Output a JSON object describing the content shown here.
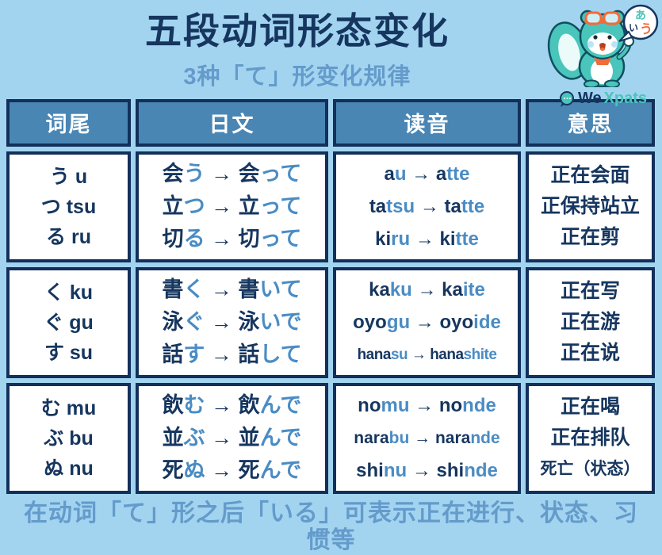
{
  "page": {
    "title": "五段动词形态变化",
    "subtitle": "3种「て」形变化规律",
    "footer": "在动词「て」形之后「いる」可表示正在进行、状态、习惯等"
  },
  "logo": {
    "bubble_chars": [
      "あ",
      "い",
      "う"
    ],
    "brand_we": "We",
    "brand_xpats": "Xpats"
  },
  "colors": {
    "bg": "#A2D4F0",
    "navy": "#16365F",
    "hl": "#4A8CC4",
    "muted": "#649BCB",
    "header-fill": "#4A86B4",
    "border": "#12305A",
    "teal": "#49C5BB",
    "teal-dark": "#0F4F5E",
    "orange": "#F26B3A"
  },
  "table": {
    "headers": [
      "词尾",
      "日文",
      "读音",
      "意思"
    ],
    "rows": [
      {
        "endings": [
          {
            "kana": "う",
            "romaji": "u"
          },
          {
            "kana": "つ",
            "romaji": "tsu"
          },
          {
            "kana": "る",
            "romaji": "ru"
          }
        ],
        "japanese": [
          {
            "from": {
              "stem": "会",
              "suffix": "う"
            },
            "to": {
              "stem": "会",
              "suffix": "って"
            }
          },
          {
            "from": {
              "stem": "立",
              "suffix": "つ"
            },
            "to": {
              "stem": "立",
              "suffix": "って"
            }
          },
          {
            "from": {
              "stem": "切",
              "suffix": "る"
            },
            "to": {
              "stem": "切",
              "suffix": "って"
            }
          }
        ],
        "readings": [
          {
            "from": {
              "stem": "a",
              "suffix": "u"
            },
            "to": {
              "stem": "a",
              "suffix": "tte"
            }
          },
          {
            "from": {
              "stem": "ta",
              "suffix": "tsu"
            },
            "to": {
              "stem": "ta",
              "suffix": "tte"
            }
          },
          {
            "from": {
              "stem": "ki",
              "suffix": "ru"
            },
            "to": {
              "stem": "ki",
              "suffix": "tte"
            }
          }
        ],
        "meanings": [
          "正在会面",
          "正保持站立",
          "正在剪"
        ]
      },
      {
        "endings": [
          {
            "kana": "く",
            "romaji": "ku"
          },
          {
            "kana": "ぐ",
            "romaji": "gu"
          },
          {
            "kana": "す",
            "romaji": "su"
          }
        ],
        "japanese": [
          {
            "from": {
              "stem": "書",
              "suffix": "く"
            },
            "to": {
              "stem": "書",
              "suffix": "いて"
            }
          },
          {
            "from": {
              "stem": "泳",
              "suffix": "ぐ"
            },
            "to": {
              "stem": "泳",
              "suffix": "いで"
            }
          },
          {
            "from": {
              "stem": "話",
              "suffix": "す"
            },
            "to": {
              "stem": "話",
              "suffix": "して"
            }
          }
        ],
        "readings": [
          {
            "from": {
              "stem": "ka",
              "suffix": "ku"
            },
            "to": {
              "stem": "ka",
              "suffix": "ite"
            }
          },
          {
            "from": {
              "stem": "oyo",
              "suffix": "gu"
            },
            "to": {
              "stem": "oyo",
              "suffix": "ide"
            }
          },
          {
            "from": {
              "stem": "hana",
              "suffix": "su"
            },
            "to": {
              "stem": "hana",
              "suffix": "shite"
            }
          }
        ],
        "meanings": [
          "正在写",
          "正在游",
          "正在说"
        ]
      },
      {
        "endings": [
          {
            "kana": "む",
            "romaji": "mu"
          },
          {
            "kana": "ぶ",
            "romaji": "bu"
          },
          {
            "kana": "ぬ",
            "romaji": "nu"
          }
        ],
        "japanese": [
          {
            "from": {
              "stem": "飲",
              "suffix": "む"
            },
            "to": {
              "stem": "飲",
              "suffix": "んで"
            }
          },
          {
            "from": {
              "stem": "並",
              "suffix": "ぶ"
            },
            "to": {
              "stem": "並",
              "suffix": "んで"
            }
          },
          {
            "from": {
              "stem": "死",
              "suffix": "ぬ"
            },
            "to": {
              "stem": "死",
              "suffix": "んで"
            }
          }
        ],
        "readings": [
          {
            "from": {
              "stem": "no",
              "suffix": "mu"
            },
            "to": {
              "stem": "no",
              "suffix": "nde"
            }
          },
          {
            "from": {
              "stem": "nara",
              "suffix": "bu"
            },
            "to": {
              "stem": "nara",
              "suffix": "nde"
            }
          },
          {
            "from": {
              "stem": "shi",
              "suffix": "nu"
            },
            "to": {
              "stem": "shi",
              "suffix": "nde"
            }
          }
        ],
        "meanings": [
          "正在喝",
          "正在排队",
          "死亡（状态）"
        ]
      }
    ]
  }
}
